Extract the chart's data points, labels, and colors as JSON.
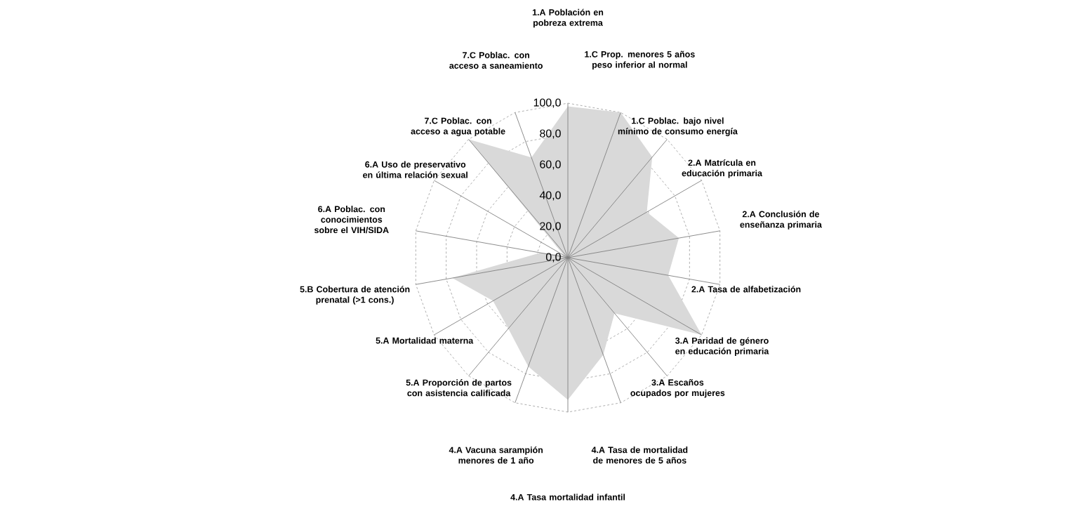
{
  "chart_data": {
    "type": "radar",
    "categories": [
      "1.A Población en pobreza extrema",
      "1.C Prop. menores 5 años peso inferior al normal",
      "1.C Poblac. bajo nivel mínimo de consumo energía",
      "2.A Matrícula en educación primaria",
      "2.A Conclusión de enseñanza primaria",
      "2.A Tasa de alfabetización",
      "3.A Paridad de género en educación primaria",
      "3.A Escaños ocupados por mujeres",
      "4.A Tasa de mortalidad de menores de 5 años",
      "4.A Tasa mortalidad infantil",
      "4.A Vacuna sarampión menores de 1 año",
      "5.A Proporción de partos con asistencia calificada",
      "5.A Mortalidad materna",
      "5.B Cobertura de atención prenatal (>1 cons.)",
      "6.A Poblac. con conocimientos sobre el VIH/SIDA",
      "6.A Uso  de preservativo en última relación sexual",
      "7.C Poblac. con acceso a agua potable",
      "7.C Poblac. con acceso a saneamiento"
    ],
    "series": [
      {
        "color": "#d9d9d9",
        "values": [
          98,
          100,
          85,
          59,
          73,
          66,
          100,
          47,
          67,
          92,
          75,
          60,
          56,
          76,
          18,
          3,
          100,
          69
        ]
      }
    ],
    "ylim": [
      0,
      100
    ],
    "yticks": [
      {
        "value": 0,
        "label": "0,0"
      },
      {
        "value": 20,
        "label": "20,0"
      },
      {
        "value": 40,
        "label": "40,0"
      },
      {
        "value": 60,
        "label": "60,0"
      },
      {
        "value": 80,
        "label": "80,0"
      },
      {
        "value": 100,
        "label": "100,0"
      }
    ],
    "grid": true
  }
}
